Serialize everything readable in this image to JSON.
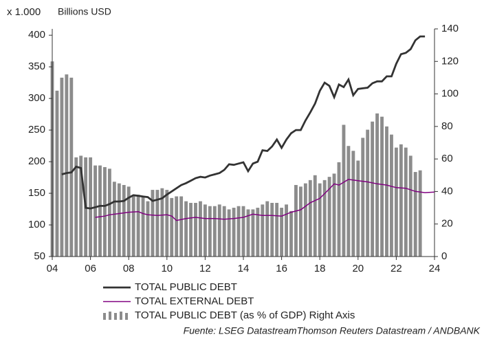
{
  "chart_data": {
    "type": "combo",
    "unit_label": "x 1.000",
    "y_label": "Billions USD",
    "source": "Fuente: LSEG DatastreamThomson Reuters Datastream / ANDBANK",
    "xlim": [
      2004,
      2024
    ],
    "xticks": [
      {
        "value": 2004,
        "label": "04"
      },
      {
        "value": 2006,
        "label": "06"
      },
      {
        "value": 2008,
        "label": "08"
      },
      {
        "value": 2010,
        "label": "10"
      },
      {
        "value": 2012,
        "label": "12"
      },
      {
        "value": 2014,
        "label": "14"
      },
      {
        "value": 2016,
        "label": "16"
      },
      {
        "value": 2018,
        "label": "18"
      },
      {
        "value": 2020,
        "label": "20"
      },
      {
        "value": 2022,
        "label": "22"
      },
      {
        "value": 2024,
        "label": "24"
      }
    ],
    "ylim": [
      50,
      410
    ],
    "yticks": [
      50,
      100,
      150,
      200,
      250,
      300,
      350,
      400
    ],
    "y2lim": [
      0,
      140
    ],
    "y2ticks": [
      0,
      20,
      40,
      60,
      80,
      100,
      120,
      140
    ],
    "series": [
      {
        "name": "TOTAL PUBLIC DEBT",
        "type": "line",
        "color": "#333333",
        "x": [
          2004.5,
          2004.75,
          2005,
          2005.25,
          2005.5,
          2005.75,
          2006,
          2006.25,
          2006.5,
          2006.75,
          2007,
          2007.25,
          2007.5,
          2007.75,
          2008,
          2008.25,
          2008.5,
          2008.75,
          2009,
          2009.25,
          2009.5,
          2009.75,
          2010,
          2010.25,
          2010.5,
          2010.75,
          2011,
          2011.25,
          2011.5,
          2011.75,
          2012,
          2012.25,
          2012.5,
          2012.75,
          2013,
          2013.25,
          2013.5,
          2013.75,
          2014,
          2014.25,
          2014.5,
          2014.75,
          2015,
          2015.25,
          2015.5,
          2015.75,
          2016,
          2016.25,
          2016.5,
          2016.75,
          2017,
          2017.25,
          2017.5,
          2017.75,
          2018,
          2018.25,
          2018.5,
          2018.75,
          2019,
          2019.25,
          2019.5,
          2019.75,
          2020,
          2020.25,
          2020.5,
          2020.75,
          2021,
          2021.25,
          2021.5,
          2021.75,
          2022,
          2022.25,
          2022.5,
          2022.75,
          2023,
          2023.25,
          2023.5
        ],
        "values": [
          180,
          182,
          183,
          192,
          190,
          127,
          126,
          128,
          130,
          130,
          133,
          137,
          137,
          138,
          143,
          147,
          146,
          145,
          144,
          138,
          140,
          142,
          148,
          153,
          158,
          163,
          166,
          170,
          174,
          176,
          175,
          178,
          180,
          182,
          187,
          196,
          195,
          197,
          199,
          185,
          197,
          200,
          218,
          217,
          224,
          235,
          222,
          235,
          245,
          250,
          250,
          265,
          278,
          292,
          312,
          325,
          320,
          302,
          322,
          318,
          330,
          305,
          315,
          316,
          317,
          324,
          327,
          327,
          335,
          335,
          355,
          370,
          372,
          378,
          392,
          398,
          398
        ]
      },
      {
        "name": "TOTAL EXTERNAL DEBT",
        "type": "line",
        "color": "#800080",
        "x": [
          2006.25,
          2006.5,
          2006.75,
          2007,
          2007.5,
          2008,
          2008.5,
          2008.75,
          2009,
          2009.5,
          2010,
          2010.25,
          2010.5,
          2011,
          2011.5,
          2012,
          2012.5,
          2013,
          2013.5,
          2014,
          2014.5,
          2015,
          2015.5,
          2016,
          2016.5,
          2017,
          2017.5,
          2018,
          2018.5,
          2018.75,
          2019,
          2019.5,
          2020,
          2020.5,
          2021,
          2021.5,
          2022,
          2022.5,
          2023,
          2023.5,
          2024
        ],
        "values": [
          112,
          113,
          114,
          116,
          118,
          120,
          121,
          118,
          116,
          115,
          116,
          114,
          107,
          110,
          112,
          110,
          110,
          109,
          110,
          112,
          117,
          115,
          115,
          114,
          120,
          124,
          135,
          142,
          157,
          165,
          163,
          172,
          170,
          168,
          165,
          163,
          159,
          158,
          153,
          151,
          152
        ]
      },
      {
        "name": "TOTAL PUBLIC DEBT (as % of GDP) Right Axis",
        "type": "bar",
        "axis": "y2",
        "color": "#8c8c8c",
        "x": [
          2004,
          2004.25,
          2004.5,
          2004.75,
          2005,
          2005.25,
          2005.5,
          2005.75,
          2006,
          2006.25,
          2006.5,
          2006.75,
          2007,
          2007.25,
          2007.5,
          2007.75,
          2008,
          2008.25,
          2008.5,
          2008.75,
          2009,
          2009.25,
          2009.5,
          2009.75,
          2010,
          2010.25,
          2010.5,
          2010.75,
          2011,
          2011.25,
          2011.5,
          2011.75,
          2012,
          2012.25,
          2012.5,
          2012.75,
          2013,
          2013.25,
          2013.5,
          2013.75,
          2014,
          2014.25,
          2014.5,
          2014.75,
          2015,
          2015.25,
          2015.5,
          2015.75,
          2016,
          2016.25,
          2016.5,
          2016.75,
          2017,
          2017.25,
          2017.5,
          2017.75,
          2018,
          2018.25,
          2018.5,
          2018.75,
          2019,
          2019.25,
          2019.5,
          2019.75,
          2020,
          2020.25,
          2020.5,
          2020.75,
          2021,
          2021.25,
          2021.5,
          2021.75,
          2022,
          2022.25,
          2022.5,
          2022.75,
          2023,
          2023.25
        ],
        "values": [
          120,
          102,
          110,
          112,
          110,
          61,
          62,
          61,
          61,
          56,
          56,
          55,
          54,
          46,
          45,
          44,
          43,
          38,
          38,
          37,
          34,
          41,
          41,
          42,
          41,
          36,
          37,
          37,
          34,
          33,
          33,
          34,
          32,
          31,
          31,
          32,
          31,
          29,
          30,
          31,
          31,
          29,
          29,
          30,
          32,
          34,
          33,
          33,
          30,
          32,
          28,
          44,
          43,
          45,
          47,
          50,
          45,
          47,
          49,
          51,
          58,
          81,
          68,
          65,
          59,
          73,
          78,
          83,
          88,
          86,
          80,
          75,
          67,
          69,
          67,
          62,
          52,
          53
        ]
      }
    ]
  }
}
